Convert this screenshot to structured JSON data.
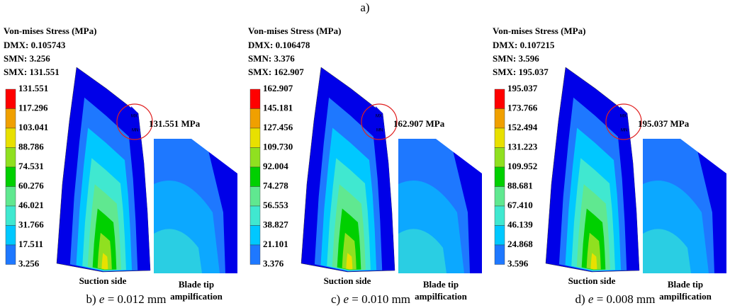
{
  "title": "a)",
  "colors": [
    "#0000e8",
    "#1e78ff",
    "#00c8ff",
    "#40e8d0",
    "#60e890",
    "#00d000",
    "#90e020",
    "#e8e000",
    "#f0a000",
    "#ff0000"
  ],
  "panels": [
    {
      "heading": "Von-mises  Stress (MPa)",
      "dmx": "DMX: 0.105743",
      "smn": "SMN: 3.256",
      "smx": "SMX: 131.551",
      "legend": [
        "131.551",
        "117.296",
        "103.041",
        "88.786",
        "74.531",
        "60.276",
        "46.021",
        "31.766",
        "17.511",
        "3.256"
      ],
      "annotation": "131.551 MPa",
      "mx": "MX",
      "mn": "MN",
      "side_label": "Suction side",
      "inset_label_1": "Blade tip",
      "inset_label_2": "ampilfication",
      "caption": {
        "label": "b)",
        "var": "e",
        "text": "= 0.012 mm"
      }
    },
    {
      "heading": "Von-mises  Stress (MPa)",
      "dmx": "DMX: 0.106478",
      "smn": "SMN: 3.376",
      "smx": "SMX: 162.907",
      "legend": [
        "162.907",
        "145.181",
        "127.456",
        "109.730",
        "92.004",
        "74.278",
        "56.553",
        "38.827",
        "21.101",
        "3.376"
      ],
      "annotation": "162.907 MPa",
      "mx": "MX",
      "mn": "MN",
      "side_label": "Suction side",
      "inset_label_1": "Blade tip",
      "inset_label_2": "ampilfication",
      "caption": {
        "label": "c)",
        "var": "e",
        "text": "= 0.010 mm"
      }
    },
    {
      "heading": "Von-mises  Stress (MPa)",
      "dmx": "DMX: 0.107215",
      "smn": "SMN: 3.596",
      "smx": "SMX: 195.037",
      "legend": [
        "195.037",
        "173.766",
        "152.494",
        "131.223",
        "109.952",
        "88.681",
        "67.410",
        "46.139",
        "24.868",
        "3.596"
      ],
      "annotation": "195.037 MPa",
      "mx": "MX",
      "mn": "MN",
      "side_label": "Suction side",
      "inset_label_1": "Blade tip",
      "inset_label_2": "ampilfication",
      "caption": {
        "label": "d)",
        "var": "e",
        "text": "= 0.008 mm"
      }
    }
  ]
}
